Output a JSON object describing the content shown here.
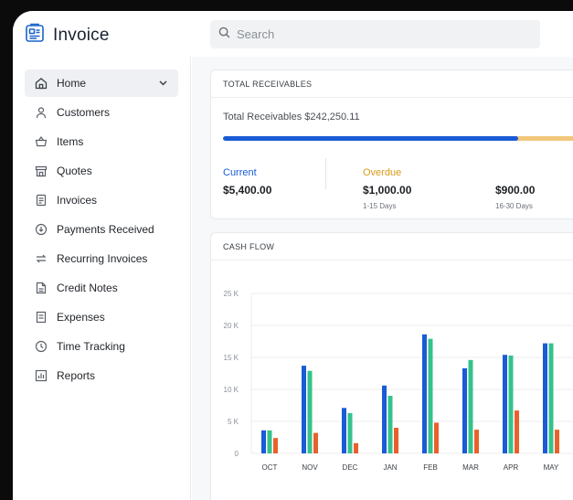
{
  "app": {
    "name": "Invoice"
  },
  "search": {
    "placeholder": "Search"
  },
  "sidebar": {
    "items": [
      {
        "label": "Home",
        "icon": "home-icon"
      },
      {
        "label": "Customers",
        "icon": "person-icon"
      },
      {
        "label": "Items",
        "icon": "basket-icon"
      },
      {
        "label": "Quotes",
        "icon": "store-icon"
      },
      {
        "label": "Invoices",
        "icon": "invoice-icon"
      },
      {
        "label": "Payments Received",
        "icon": "payment-icon"
      },
      {
        "label": "Recurring Invoices",
        "icon": "recurring-icon"
      },
      {
        "label": "Credit Notes",
        "icon": "credit-note-icon"
      },
      {
        "label": "Expenses",
        "icon": "expense-icon"
      },
      {
        "label": "Time Tracking",
        "icon": "clock-icon"
      },
      {
        "label": "Reports",
        "icon": "reports-icon"
      }
    ]
  },
  "receivables": {
    "heading": "TOTAL RECEIVABLES",
    "total_text": "Total Receivables $242,250.11",
    "current_fraction": 0.77,
    "current": {
      "label": "Current",
      "value": "$5,400.00"
    },
    "overdue": {
      "label": "Overdue",
      "value": "$1,000.00",
      "range": "1-15 Days"
    },
    "overdue2": {
      "value": "$900.00",
      "range": "16-30 Days"
    }
  },
  "cashflow": {
    "heading": "CASH FLOW"
  },
  "colors": {
    "blue": "#1a5bd6",
    "green": "#35c28c",
    "orange": "#e8612c",
    "overdue_text": "#d99a1a",
    "current_text": "#1a5bd6"
  },
  "chart_data": {
    "type": "bar",
    "categories": [
      "OCT",
      "NOV",
      "DEC",
      "JAN",
      "FEB",
      "MAR",
      "APR",
      "MAY"
    ],
    "y_ticks": [
      "0",
      "5 K",
      "10 K",
      "15 K",
      "20 K",
      "25 K"
    ],
    "ylim": [
      0,
      25000
    ],
    "grid": true,
    "series": [
      {
        "color": "#1a5bd6",
        "values": [
          3600,
          13700,
          7100,
          10600,
          18600,
          13300,
          15400,
          17200
        ]
      },
      {
        "color": "#35c28c",
        "values": [
          3600,
          12900,
          6300,
          9000,
          17900,
          14600,
          15300,
          17200
        ]
      },
      {
        "color": "#e8612c",
        "values": [
          2400,
          3200,
          1600,
          4000,
          4800,
          3700,
          6700,
          3700
        ]
      }
    ]
  }
}
